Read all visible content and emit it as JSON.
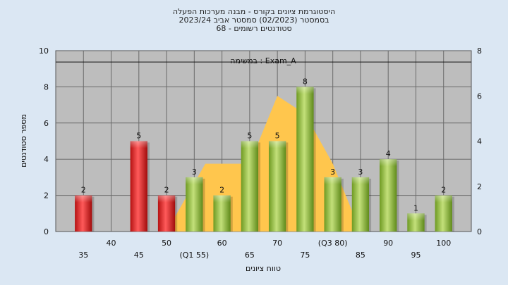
{
  "chart_data": {
    "type": "bar",
    "title_lines": [
      "היסטוגרמת ציונים בקורס - מבנה מערכות הפעלה",
      "בסמסטר  (02/2023)  סמסטר אביב 2023/24",
      "68 - סטודנטים רשומים"
    ],
    "annotation": "במשימה : Exam_A",
    "xlabel": "טווח ציונים",
    "ylabel": "מספר סטודנטים",
    "categories": [
      "35",
      "40",
      "45",
      "50",
      "(Q1 55)",
      "60",
      "65",
      "70",
      "75",
      "(Q3 80)",
      "85",
      "90",
      "95",
      "100"
    ],
    "values": [
      2,
      0,
      5,
      2,
      3,
      2,
      5,
      5,
      8,
      3,
      3,
      4,
      1,
      2
    ],
    "value_labels": [
      "2",
      "",
      "5",
      "2",
      "3",
      "2",
      "5",
      "5",
      "8",
      "3",
      "3",
      "4",
      "1",
      "2"
    ],
    "bar_groups": [
      "fail",
      "fail",
      "fail",
      "fail",
      "pass",
      "pass",
      "pass",
      "pass",
      "pass",
      "pass",
      "pass",
      "pass",
      "pass",
      "pass"
    ],
    "ylim": [
      0,
      10
    ],
    "yticks": [
      "0",
      "2",
      "4",
      "6",
      "8",
      "10"
    ],
    "y2lim": [
      0,
      8
    ],
    "y2ticks": [
      "0",
      "2",
      "4",
      "6",
      "8"
    ],
    "distribution": {
      "x": [
        50,
        57,
        65,
        70,
        75,
        80,
        85
      ],
      "y": [
        0,
        3,
        3,
        6,
        5.2,
        3,
        0
      ]
    },
    "mean_line_y": 7.5,
    "grid": true,
    "colors": {
      "fail": "#e02020",
      "pass": "#8cbb3a",
      "distribution": "#ffc64d",
      "plot_bg": "#bdbdbd",
      "page_bg": "#dbe7f3"
    }
  }
}
